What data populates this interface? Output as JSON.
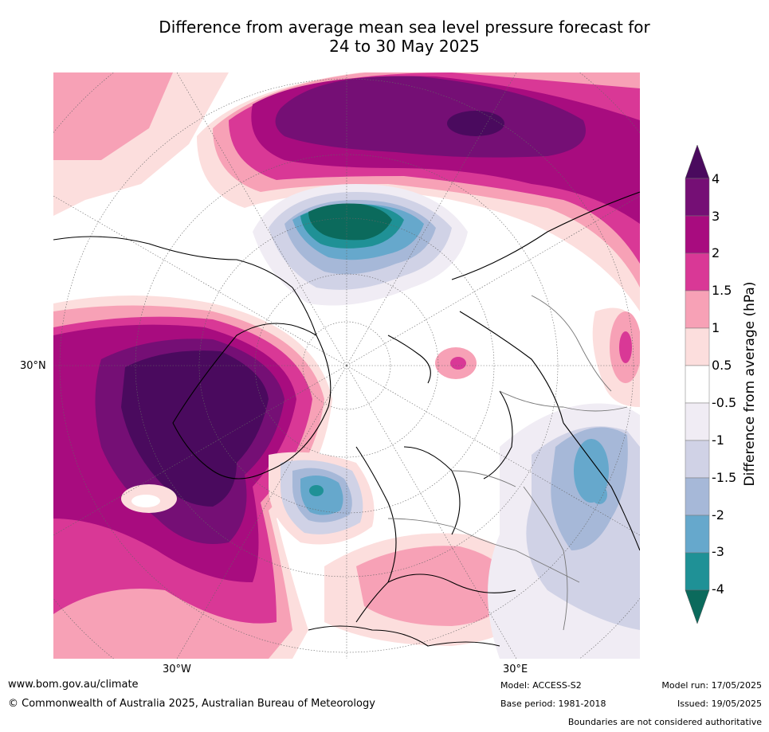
{
  "title": {
    "line1": "Difference from average mean sea level pressure forecast for",
    "line2": "24 to 30 May 2025"
  },
  "map": {
    "projection": "north-polar",
    "lat_labels": [
      "30°N"
    ],
    "lon_labels": [
      "30°W",
      "30°E"
    ]
  },
  "colorbar": {
    "label": "Difference from average (hPa)",
    "ticks": [
      "4",
      "3",
      "2",
      "1.5",
      "1",
      "0.5",
      "-0.5",
      "-1",
      "-1.5",
      "-2",
      "-3",
      "-4"
    ],
    "colors": [
      "#4a0a5e",
      "#750f75",
      "#a80c7f",
      "#d93896",
      "#f7a1b6",
      "#fcdedd",
      "#ffffff",
      "#f0ecf4",
      "#d0d2e6",
      "#a6b8d8",
      "#66a8cc",
      "#1f9196",
      "#0b6a5c"
    ]
  },
  "footer": {
    "website": "www.bom.gov.au/climate",
    "copyright": "© Commonwealth of Australia 2025, Australian Bureau of Meteorology",
    "model": "Model: ACCESS-S2",
    "base_period": "Base period: 1981-2018",
    "model_run": "Model run: 17/05/2025",
    "issued": "Issued: 19/05/2025",
    "disclaimer": "Boundaries are not considered authoritative"
  }
}
